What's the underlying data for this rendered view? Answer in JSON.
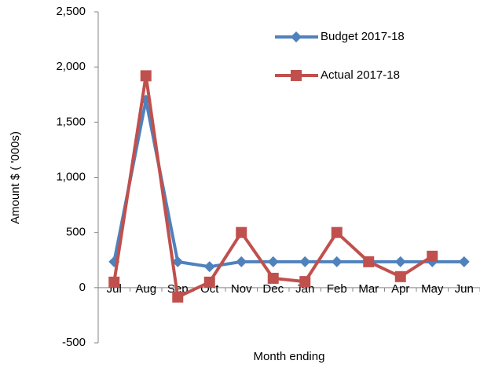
{
  "chart_data": {
    "type": "line",
    "y_label": "Amount $ ( '000s)",
    "x_label": "Month ending",
    "categories": [
      "Jul",
      "Aug",
      "Sep",
      "Oct",
      "Nov",
      "Dec",
      "Jan",
      "Feb",
      "Mar",
      "Apr",
      "May",
      "Jun"
    ],
    "series": [
      {
        "name": "Budget 2017-18",
        "color": "#4f81bd",
        "marker": "diamond",
        "values": [
          235,
          1700,
          235,
          190,
          235,
          235,
          235,
          235,
          235,
          235,
          235,
          235
        ]
      },
      {
        "name": "Actual 2017-18",
        "color": "#c0504d",
        "marker": "square",
        "values": [
          50,
          1920,
          -85,
          50,
          500,
          85,
          55,
          500,
          235,
          100,
          285,
          null
        ]
      }
    ],
    "ylim": [
      -500,
      2500
    ],
    "yticks": [
      -500,
      0,
      500,
      {
        "value": 1000,
        "label": "1,000"
      },
      {
        "value": 1500,
        "label": "1,500"
      },
      {
        "value": 2000,
        "label": "2,000"
      },
      {
        "value": 2500,
        "label": "2,500"
      }
    ],
    "grid": false,
    "legend": "top-right"
  }
}
